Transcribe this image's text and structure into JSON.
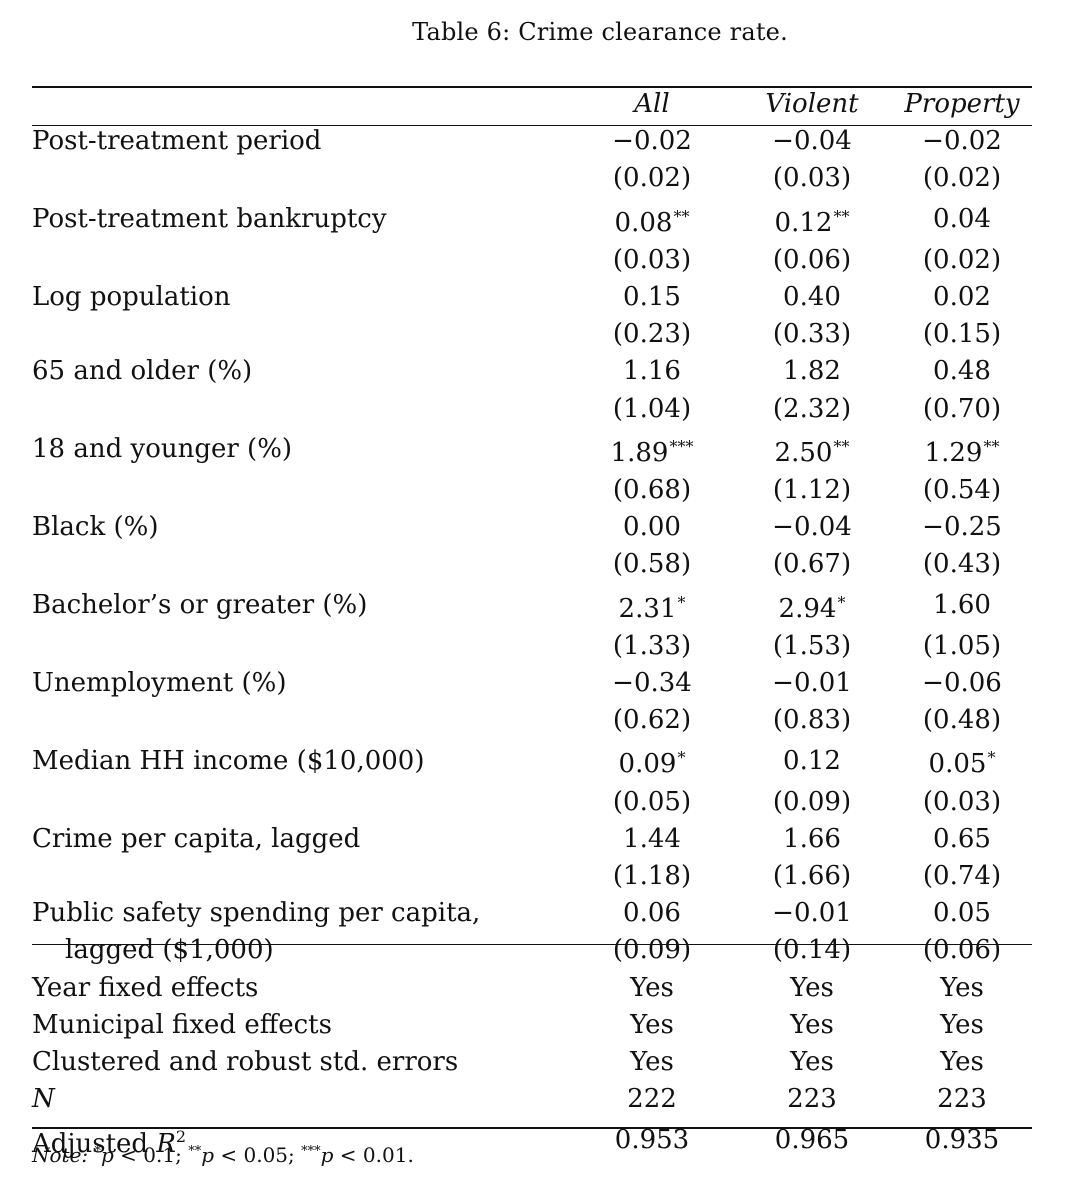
{
  "caption": "Table 6: Crime clearance rate.",
  "columns": [
    "All",
    "Violent",
    "Property"
  ],
  "rows": [
    {
      "label": "Post-treatment period",
      "coef": [
        "−0.02",
        "−0.04",
        "−0.02"
      ],
      "stars": [
        "",
        "",
        ""
      ],
      "se": [
        "(0.02)",
        "(0.03)",
        "(0.02)"
      ]
    },
    {
      "label": "Post-treatment bankruptcy",
      "coef": [
        "0.08",
        "0.12",
        "0.04"
      ],
      "stars": [
        "**",
        "**",
        ""
      ],
      "se": [
        "(0.03)",
        "(0.06)",
        "(0.02)"
      ]
    },
    {
      "label": "Log population",
      "coef": [
        "0.15",
        "0.40",
        "0.02"
      ],
      "stars": [
        "",
        "",
        ""
      ],
      "se": [
        "(0.23)",
        "(0.33)",
        "(0.15)"
      ]
    },
    {
      "label": "65 and older (%)",
      "coef": [
        "1.16",
        "1.82",
        "0.48"
      ],
      "stars": [
        "",
        "",
        ""
      ],
      "se": [
        "(1.04)",
        "(2.32)",
        "(0.70)"
      ]
    },
    {
      "label": "18 and younger (%)",
      "coef": [
        "1.89",
        "2.50",
        "1.29"
      ],
      "stars": [
        "***",
        "**",
        "**"
      ],
      "se": [
        "(0.68)",
        "(1.12)",
        "(0.54)"
      ]
    },
    {
      "label": "Black (%)",
      "coef": [
        "0.00",
        "−0.04",
        "−0.25"
      ],
      "stars": [
        "",
        "",
        ""
      ],
      "se": [
        "(0.58)",
        "(0.67)",
        "(0.43)"
      ]
    },
    {
      "label": "Bachelor’s or greater (%)",
      "coef": [
        "2.31",
        "2.94",
        "1.60"
      ],
      "stars": [
        "*",
        "*",
        ""
      ],
      "se": [
        "(1.33)",
        "(1.53)",
        "(1.05)"
      ]
    },
    {
      "label": "Unemployment (%)",
      "coef": [
        "−0.34",
        "−0.01",
        "−0.06"
      ],
      "stars": [
        "",
        "",
        ""
      ],
      "se": [
        "(0.62)",
        "(0.83)",
        "(0.48)"
      ]
    },
    {
      "label": "Median HH income ($10,000)",
      "coef": [
        "0.09",
        "0.12",
        "0.05"
      ],
      "stars": [
        "*",
        "",
        "*"
      ],
      "se": [
        "(0.05)",
        "(0.09)",
        "(0.03)"
      ]
    },
    {
      "label": "Crime per capita, lagged",
      "coef": [
        "1.44",
        "1.66",
        "0.65"
      ],
      "stars": [
        "",
        "",
        ""
      ],
      "se": [
        "(1.18)",
        "(1.66)",
        "(0.74)"
      ]
    },
    {
      "label": "Public safety spending per capita,",
      "label2": "lagged ($1,000)",
      "coef": [
        "0.06",
        "−0.01",
        "0.05"
      ],
      "stars": [
        "",
        "",
        ""
      ],
      "se": [
        "(0.09)",
        "(0.14)",
        "(0.06)"
      ]
    }
  ],
  "footer": [
    {
      "label": "Year fixed effects",
      "values": [
        "Yes",
        "Yes",
        "Yes"
      ]
    },
    {
      "label": "Municipal fixed effects",
      "values": [
        "Yes",
        "Yes",
        "Yes"
      ]
    },
    {
      "label": "Clustered and robust std. errors",
      "values": [
        "Yes",
        "Yes",
        "Yes"
      ]
    },
    {
      "label": "N",
      "values": [
        "222",
        "223",
        "223"
      ]
    },
    {
      "label": "Adjusted R",
      "label_sup": "2",
      "values": [
        "0.953",
        "0.965",
        "0.935"
      ]
    }
  ],
  "note": {
    "prefix": "Note:",
    "text": "*p < 0.1; **p < 0.05; ***p < 0.01."
  }
}
